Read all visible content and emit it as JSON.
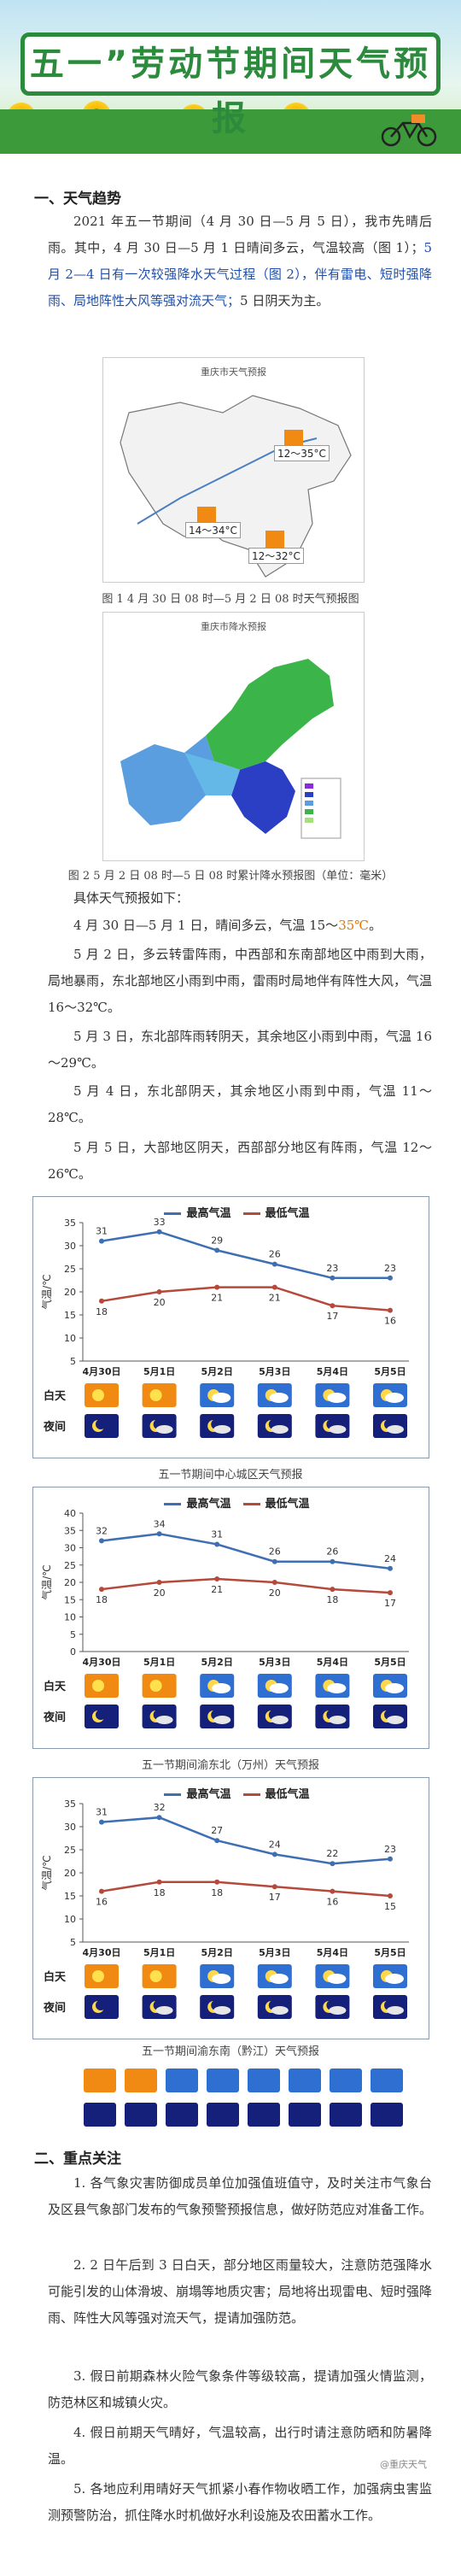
{
  "banner": {
    "title": "五一”劳动节期间天气预报"
  },
  "section1": {
    "heading": "一、天气趋势",
    "para1_a": "2021 年五一节期间（4 月 30 日—5 月 5 日），我市先晴后雨。其中，4 月 30 日—5 月 1 日晴间多云，气温较高（图 1）；",
    "para1_b": "5 月 2—4 日有一次较强降水天气过程（图 2），伴有雷电、短时强降雨、局地阵性大风等强对流天气；",
    "para1_c": "5 日阴天为主。",
    "map1": {
      "title": "重庆市天气预报",
      "labels": [
        "12～35°C",
        "14～34°C",
        "12～32°C"
      ]
    },
    "cap1": "图 1  4 月 30 日 08 时—5 月 2 日 08 时天气预报图",
    "map2": {
      "title": "重庆市降水预报"
    },
    "cap2": "图 2  5 月 2 日 08 时—5 日 08 时累计降水预报图（单位：毫米）",
    "detail_intro": "具体天气预报如下：",
    "d1_a": "4 月 30 日—5 月 1 日，晴间多云，气温 15～",
    "d1_b": "35℃",
    "d1_c": "。",
    "d2": "5 月 2 日，多云转雷阵雨，中西部和东南部地区中雨到大雨，局地暴雨，东北部地区小雨到中雨，雷雨时局地伴有阵性大风，气温 16～32℃。",
    "d3": "5 月 3 日，东北部阵雨转阴天，其余地区小雨到中雨，气温 16～29℃。",
    "d4": "5 月 4 日，东北部阴天，其余地区小雨到中雨，气温 11～28℃。",
    "d5": "5 月 5 日，大部地区阴天，西部部分地区有阵雨，气温 12～26℃。"
  },
  "charts": {
    "legend_high": "最高气温",
    "legend_low": "最低气温",
    "ylabel": "气温/℃",
    "day_label": "白天",
    "night_label": "夜间",
    "categories": [
      "4月30日",
      "5月1日",
      "5月2日",
      "5月3日",
      "5月4日",
      "5月5日"
    ],
    "colors": {
      "high": "#3f6fb3",
      "low": "#b54a3c"
    }
  },
  "chart_data": [
    {
      "type": "line",
      "categories": [
        "4月30日",
        "5月1日",
        "5月2日",
        "5月3日",
        "5月4日",
        "5月5日"
      ],
      "series": [
        {
          "name": "最高气温",
          "values": [
            31,
            33,
            29,
            26,
            23,
            23
          ]
        },
        {
          "name": "最低气温",
          "values": [
            18,
            20,
            21,
            21,
            17,
            16
          ]
        }
      ],
      "ylabel": "气温/℃",
      "ylim": [
        5,
        35
      ],
      "yticks": [
        5,
        10,
        15,
        20,
        25,
        30,
        35
      ],
      "caption": "五一节期间中心城区天气预报"
    },
    {
      "type": "line",
      "categories": [
        "4月30日",
        "5月1日",
        "5月2日",
        "5月3日",
        "5月4日",
        "5月5日"
      ],
      "series": [
        {
          "name": "最高气温",
          "values": [
            32,
            34,
            31,
            26,
            26,
            24
          ]
        },
        {
          "name": "最低气温",
          "values": [
            18,
            20,
            21,
            20,
            18,
            17
          ]
        }
      ],
      "ylabel": "气温/℃",
      "ylim": [
        0,
        40
      ],
      "yticks": [
        0,
        5,
        10,
        15,
        20,
        25,
        30,
        35,
        40
      ],
      "caption": "五一节期间渝东北（万州）天气预报"
    },
    {
      "type": "line",
      "categories": [
        "4月30日",
        "5月1日",
        "5月2日",
        "5月3日",
        "5月4日",
        "5月5日"
      ],
      "series": [
        {
          "name": "最高气温",
          "values": [
            31,
            32,
            27,
            24,
            22,
            23
          ]
        },
        {
          "name": "最低气温",
          "values": [
            16,
            18,
            18,
            17,
            16,
            15
          ]
        }
      ],
      "ylabel": "气温/℃",
      "ylim": [
        5,
        35
      ],
      "yticks": [
        5,
        10,
        15,
        20,
        25,
        30,
        35
      ],
      "caption": "五一节期间渝东南（黔江）天气预报"
    }
  ],
  "section2": {
    "heading": "二、重点关注",
    "p1": "1. 各气象灾害防御成员单位加强值班值守，及时关注市气象台及区县气象部门发布的气象预警预报信息，做好防范应对准备工作。",
    "p2": "2. 2 日午后到 3 日白天，部分地区雨量较大，注意防范强降水可能引发的山体滑坡、崩塌等地质灾害；局地将出现雷电、短时强降雨、阵性大风等强对流天气，提请加强防范。",
    "p3": "3. 假日前期森林火险气象条件等级较高，提请加强火情监测，防范林区和城镇火灾。",
    "p4": "4. 假日前期天气晴好，气温较高，出行时请注意防晒和防暑降温。",
    "p5": "5. 各地应利用晴好天气抓紧小春作物收晒工作，加强病虫害监测预警防治，抓住降水时机做好水利设施及农田蓄水工作。"
  },
  "footer": {
    "watermark": "@重庆天气"
  }
}
